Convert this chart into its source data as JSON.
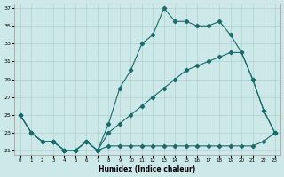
{
  "xlabel": "Humidex (Indice chaleur)",
  "xlim": [
    -0.5,
    23.5
  ],
  "ylim": [
    20.5,
    37.5
  ],
  "xticks": [
    0,
    1,
    2,
    3,
    4,
    5,
    6,
    7,
    8,
    9,
    10,
    11,
    12,
    13,
    14,
    15,
    16,
    17,
    18,
    19,
    20,
    21,
    22,
    23
  ],
  "yticks": [
    21,
    23,
    25,
    27,
    29,
    31,
    33,
    35,
    37
  ],
  "bg_color": "#cce8e8",
  "grid_color": "#aacccc",
  "line_color": "#1a6b6b",
  "curve_x": [
    0,
    1,
    2,
    3,
    4,
    5,
    6,
    7,
    8,
    9,
    10,
    11,
    12,
    13,
    14,
    15,
    16,
    17,
    18,
    19,
    20,
    21,
    22,
    23
  ],
  "curve_y": [
    25,
    23,
    22,
    22,
    21,
    21,
    22,
    21,
    24,
    28,
    30,
    33,
    34,
    37,
    35.5,
    35.5,
    35,
    35,
    35.5,
    34,
    32,
    29,
    25.5,
    23
  ],
  "linear_x": [
    0,
    1,
    2,
    3,
    4,
    5,
    6,
    7,
    8,
    9,
    10,
    11,
    12,
    13,
    14,
    15,
    16,
    17,
    18,
    19,
    20,
    21,
    22,
    23
  ],
  "linear_y": [
    25,
    23,
    22,
    22,
    21,
    21,
    22,
    21,
    23,
    24,
    25,
    26,
    27,
    28,
    29,
    30,
    30.5,
    31,
    31.5,
    32,
    32,
    29,
    25.5,
    23
  ],
  "flat_x": [
    0,
    1,
    2,
    3,
    4,
    5,
    6,
    7,
    8,
    9,
    10,
    11,
    12,
    13,
    14,
    15,
    16,
    17,
    18,
    19,
    20,
    21,
    22,
    23
  ],
  "flat_y": [
    25,
    23,
    22,
    22,
    21,
    21,
    22,
    21,
    21.5,
    21.5,
    21.5,
    21.5,
    21.5,
    21.5,
    21.5,
    21.5,
    21.5,
    21.5,
    21.5,
    21.5,
    21.5,
    21.5,
    22,
    23
  ]
}
